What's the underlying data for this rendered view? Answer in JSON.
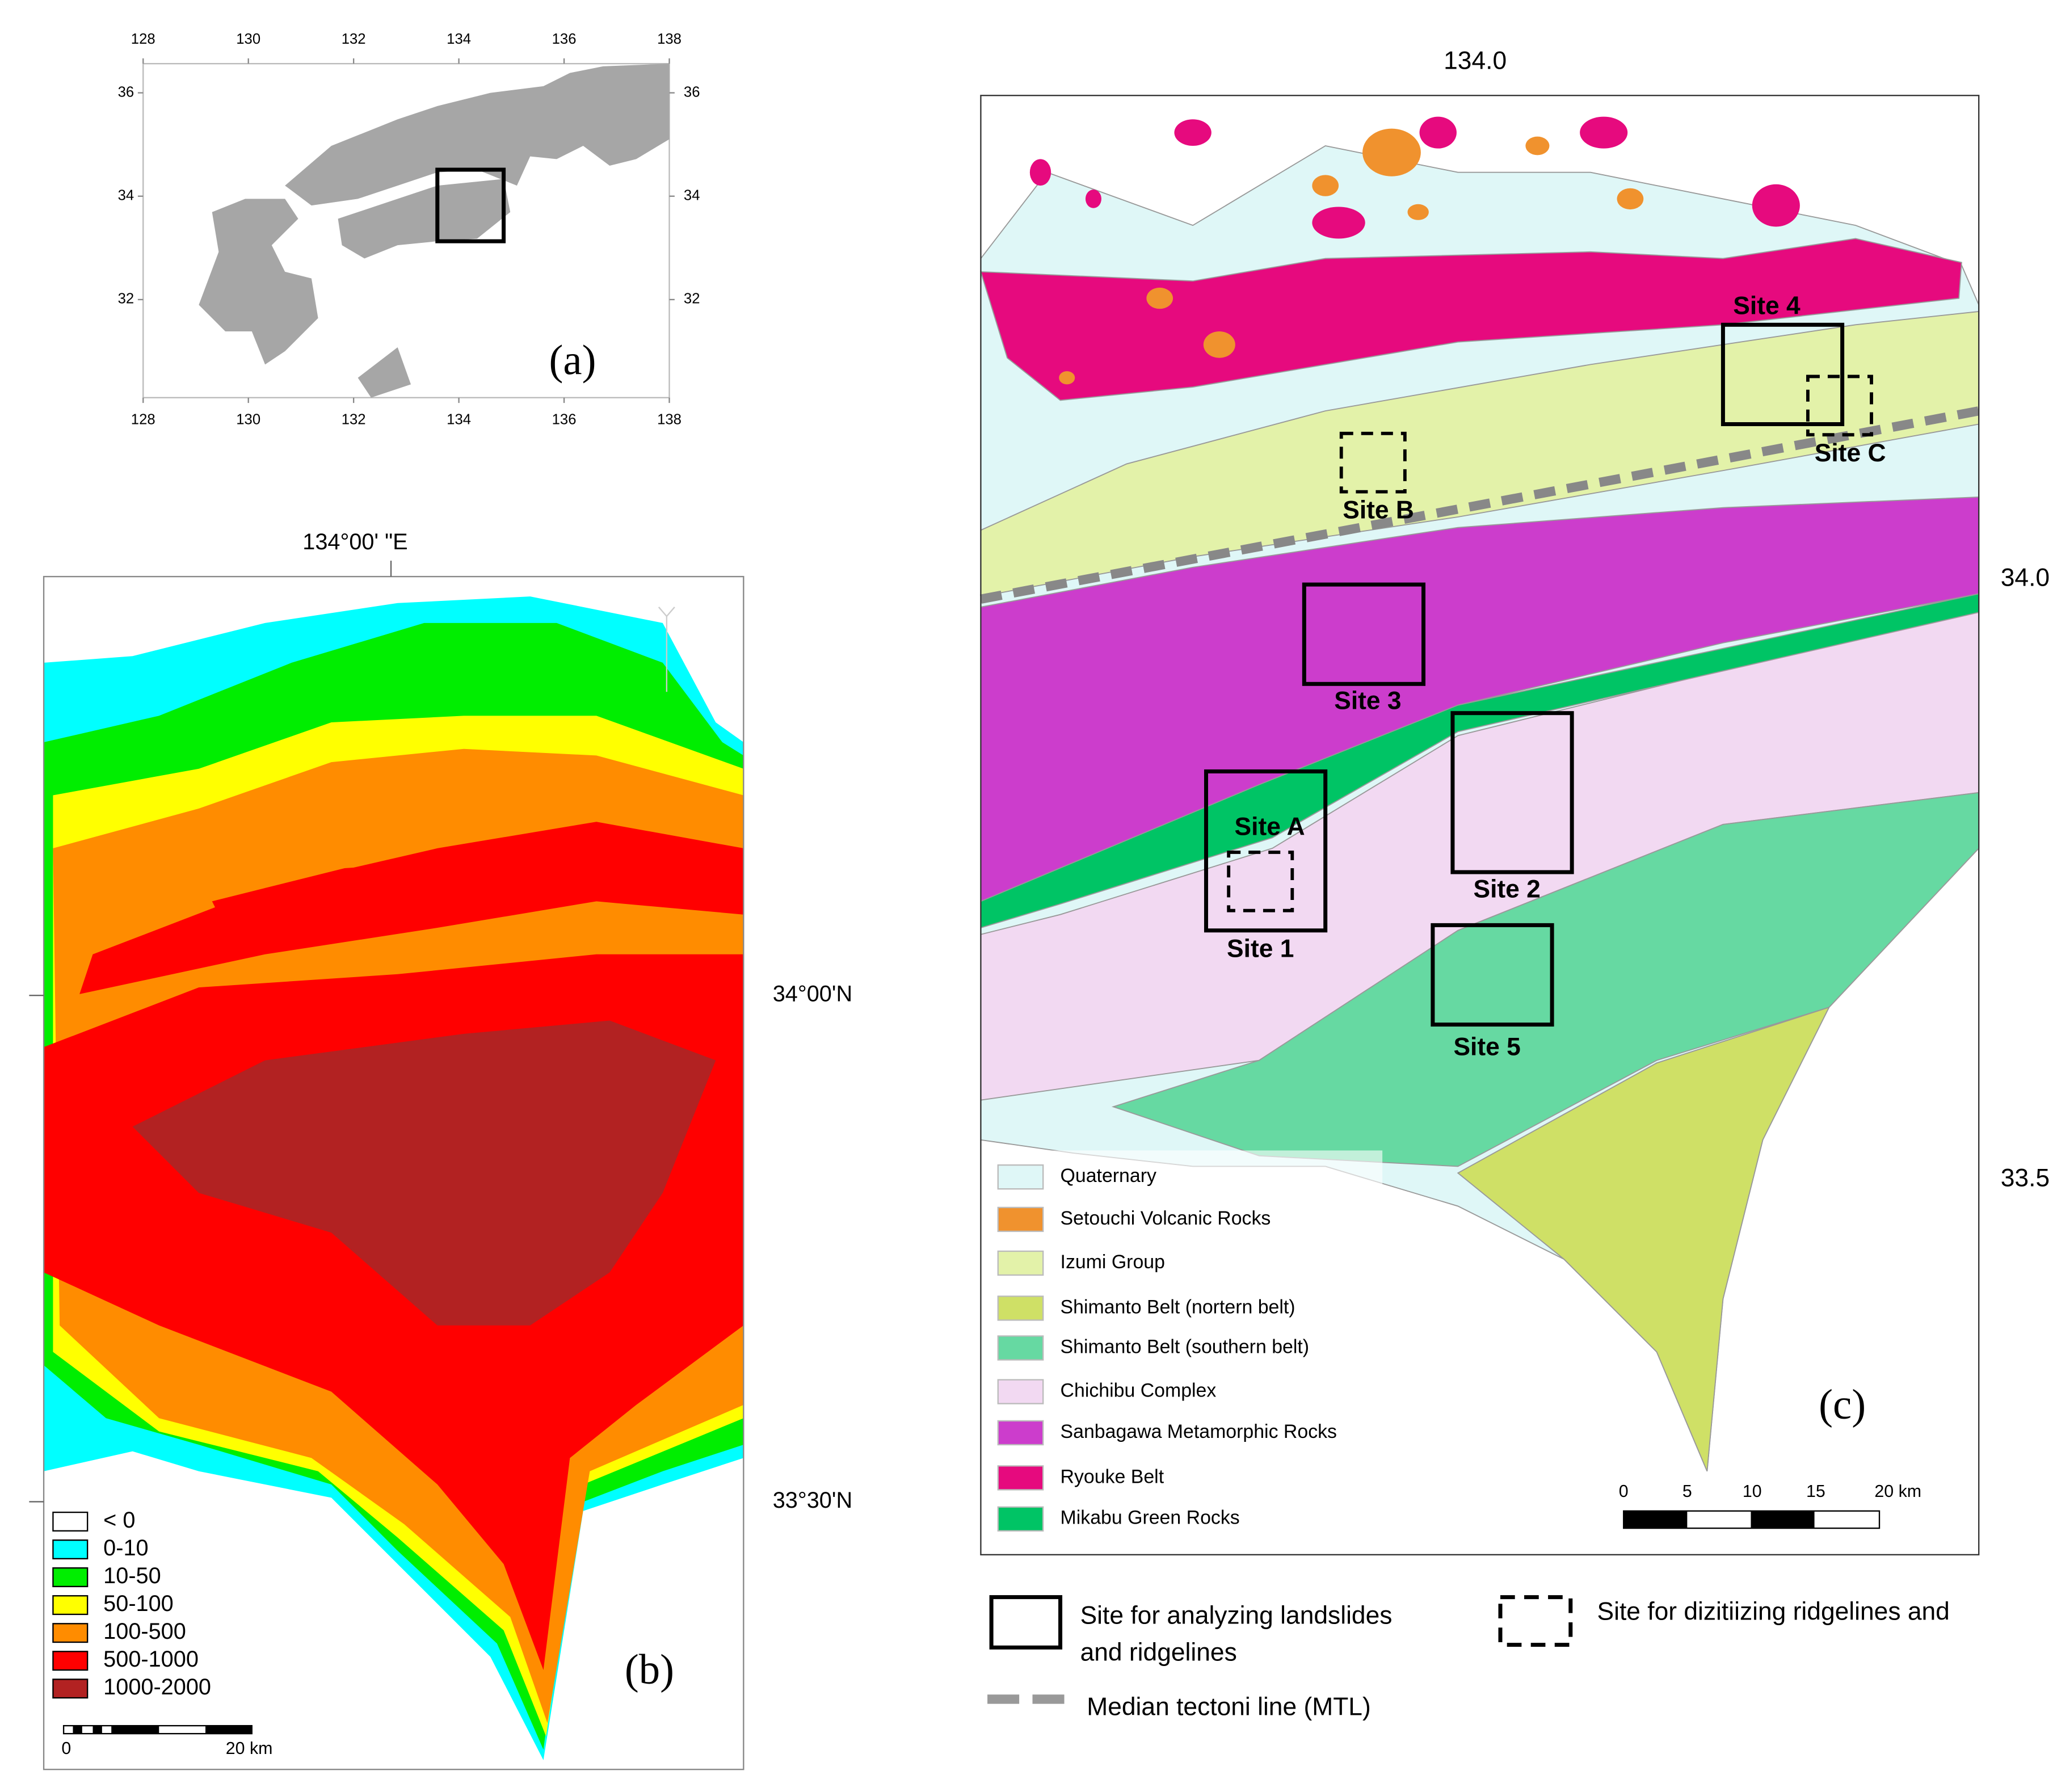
{
  "panel_a": {
    "xticks": [
      128,
      130,
      132,
      134,
      136,
      138
    ],
    "yticks": [
      32,
      34,
      36
    ],
    "label": "(a)"
  },
  "panel_b": {
    "top_label": "134°00' \"E",
    "lat_labels": [
      "34°00'N",
      "33°30'N"
    ],
    "legend": [
      {
        "name": "< 0",
        "color": "#ffffff"
      },
      {
        "name": "0-10",
        "color": "#00ffff"
      },
      {
        "name": "10-50",
        "color": "#00ee00"
      },
      {
        "name": "50-100",
        "color": "#ffff00"
      },
      {
        "name": "100-500",
        "color": "#ff8c00"
      },
      {
        "name": "500-1000",
        "color": "#ff0000"
      },
      {
        "name": "1000-2000",
        "color": "#b22222"
      }
    ],
    "scale_labels": [
      "0",
      "20 km"
    ],
    "label": "(b)"
  },
  "panel_c": {
    "top_label": "134.0",
    "lat_labels": [
      "34.0",
      "33.5"
    ],
    "legend": [
      {
        "name": "Quaternary",
        "color": "#dff7f7"
      },
      {
        "name": "Setouchi Volcanic Rocks",
        "color": "#f0922e"
      },
      {
        "name": "Izumi Group",
        "color": "#e3f2a9"
      },
      {
        "name": "Shimanto Belt (nortern belt)",
        "color": "#cfe066"
      },
      {
        "name": "Shimanto Belt (southern belt)",
        "color": "#66d9a2"
      },
      {
        "name": "Chichibu Complex",
        "color": "#f2d9f2"
      },
      {
        "name": "Sanbagawa Metamorphic Rocks",
        "color": "#cc3dcc"
      },
      {
        "name": "Ryouke Belt",
        "color": "#e60a7e"
      },
      {
        "name": "Mikabu Green Rocks",
        "color": "#00c465"
      }
    ],
    "sites": [
      "Site 1",
      "Site 2",
      "Site 3",
      "Site 4",
      "Site 5"
    ],
    "dashed_sites": [
      "Site A",
      "Site B",
      "Site C"
    ],
    "scale_labels": [
      "0",
      "5",
      "10",
      "15",
      "20 km"
    ],
    "label": "(c)"
  },
  "key": {
    "solid": [
      "Site for analyzing landslides",
      "and ridgelines"
    ],
    "dashed": "Site for dizitiizing ridgelines and",
    "mtl": "Median tectoni line (MTL)"
  }
}
